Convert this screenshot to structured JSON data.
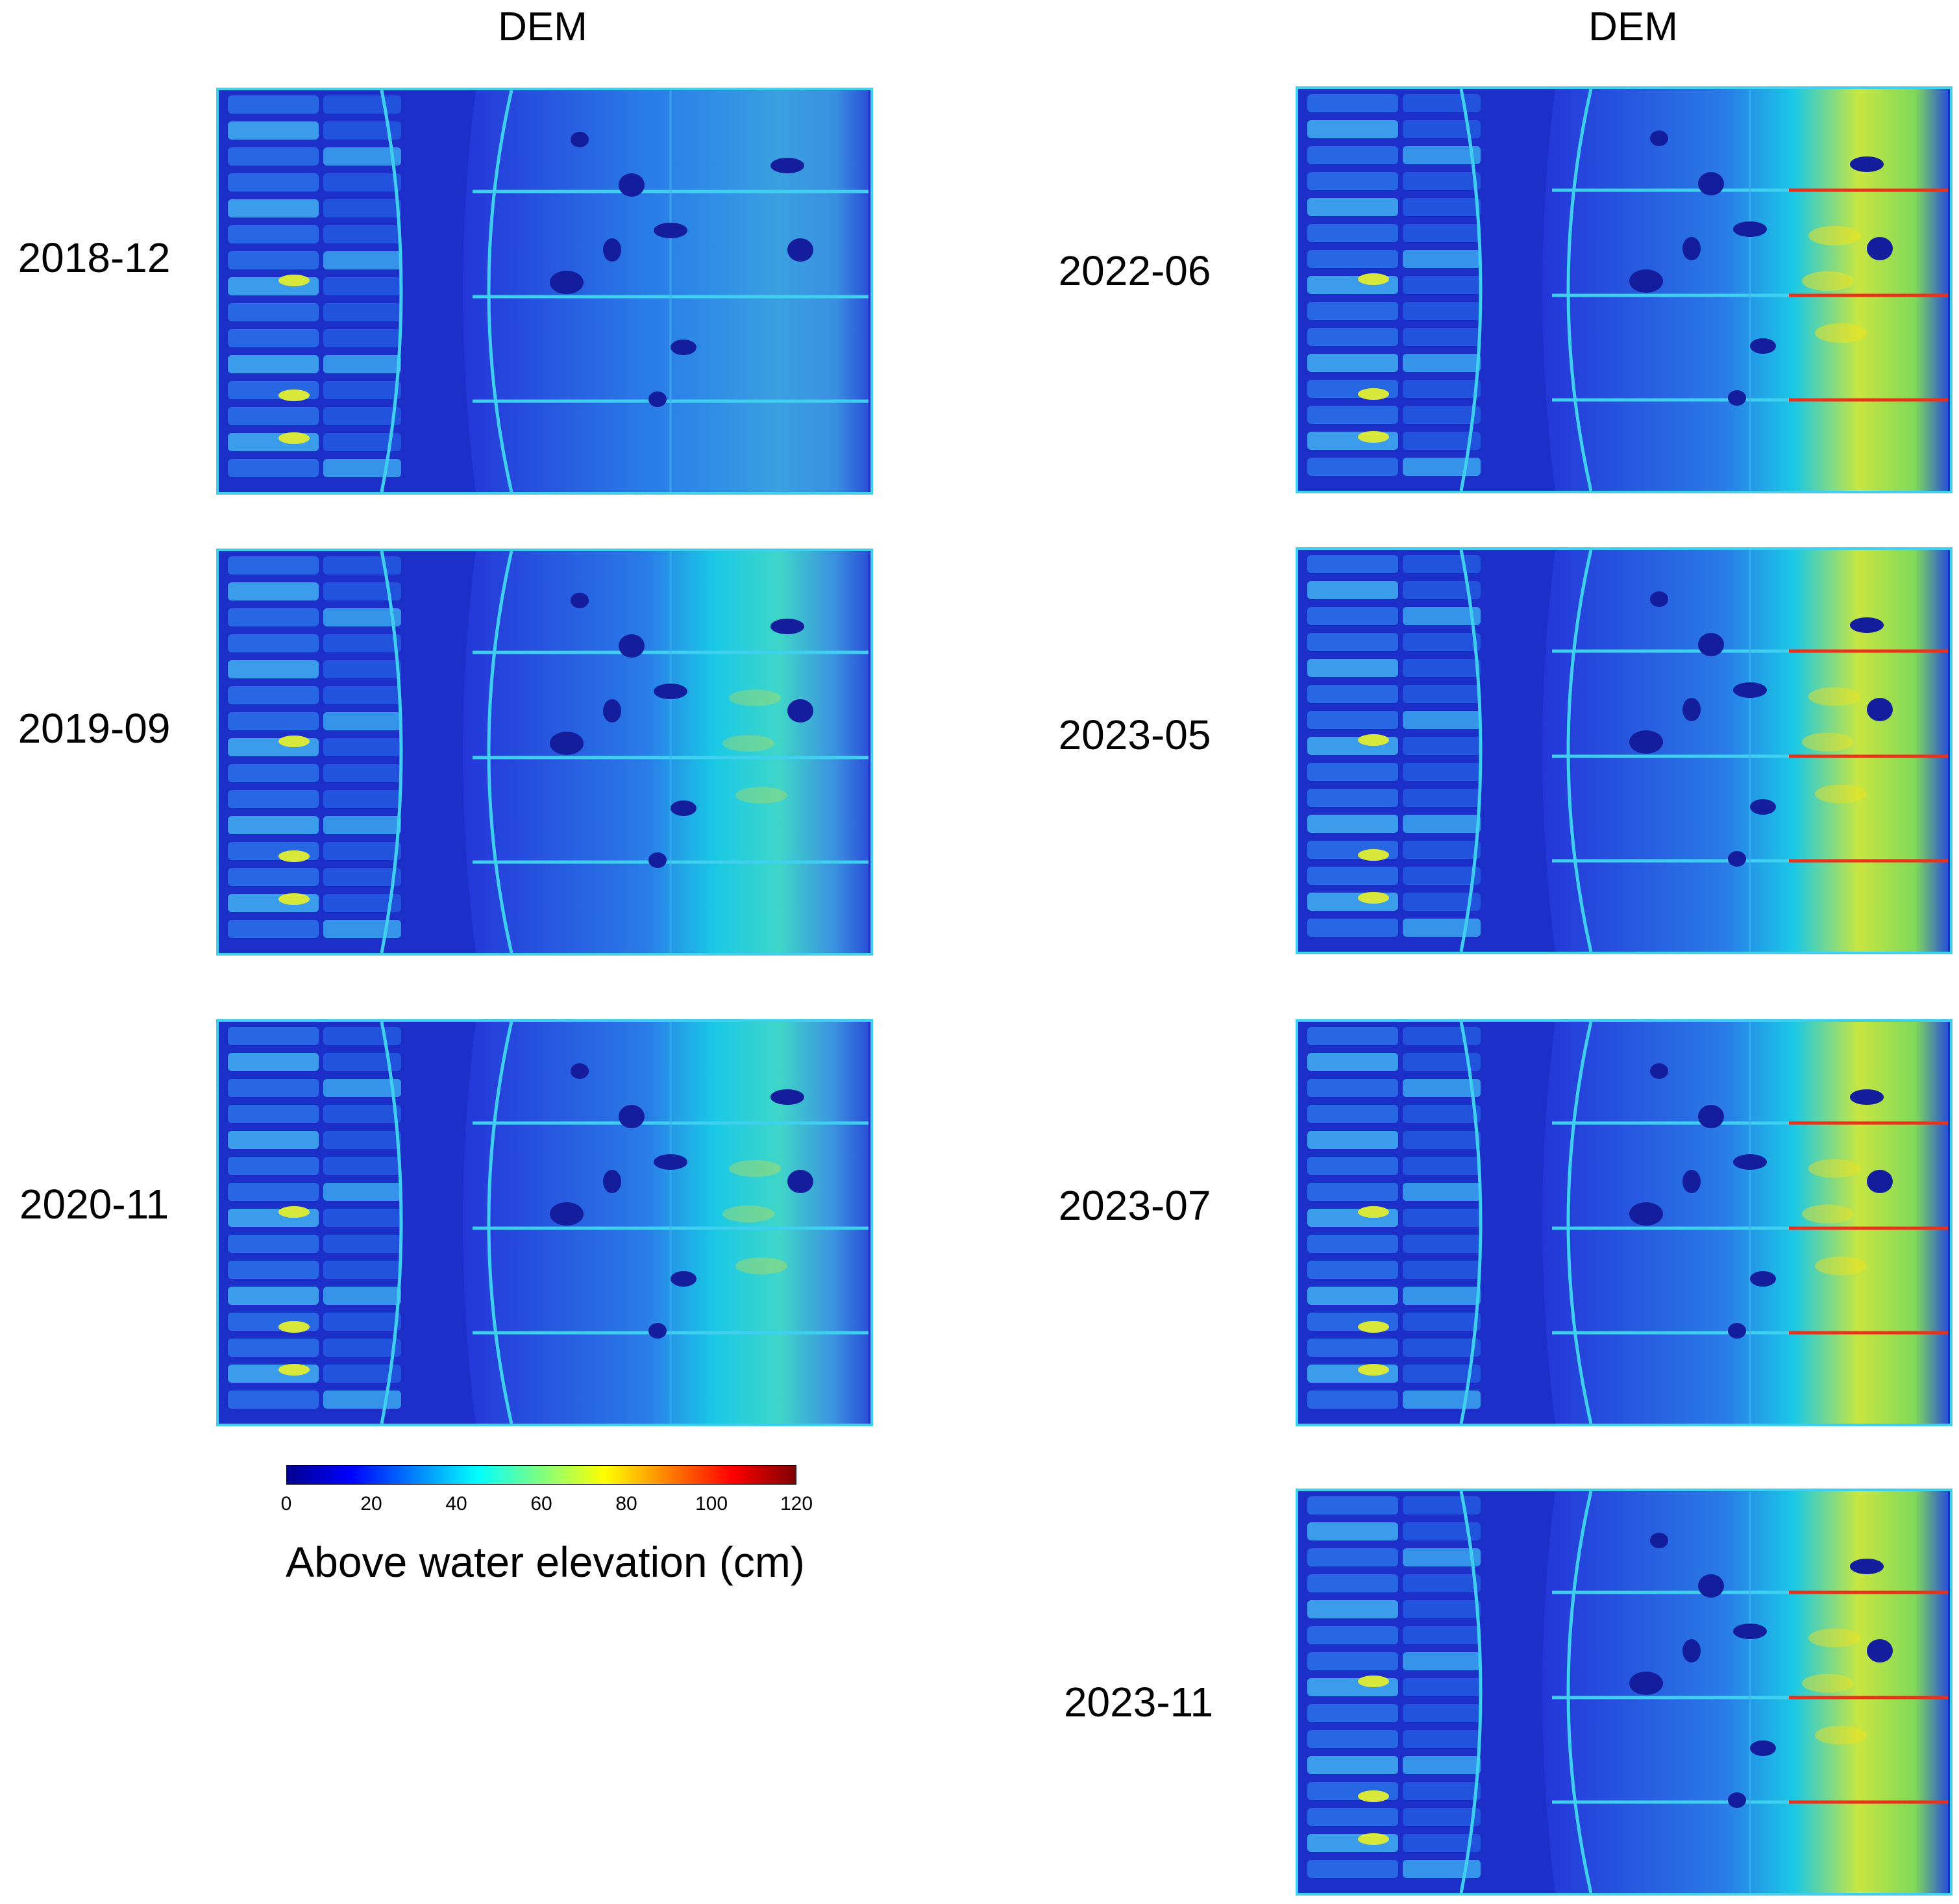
{
  "columns": [
    {
      "title": "DEM"
    },
    {
      "title": "DEM"
    }
  ],
  "panels": [
    {
      "date": "2018-12",
      "intensity": 0.25
    },
    {
      "date": "2019-09",
      "intensity": 0.45
    },
    {
      "date": "2020-11",
      "intensity": 0.5
    },
    {
      "date": "2022-06",
      "intensity": 0.85
    },
    {
      "date": "2023-05",
      "intensity": 0.75
    },
    {
      "date": "2023-07",
      "intensity": 0.75
    },
    {
      "date": "2023-11",
      "intensity": 0.75
    }
  ],
  "colorbar": {
    "label": "Above water elevation (cm)",
    "min": 0,
    "max": 120,
    "ticks": [
      "0",
      "20",
      "40",
      "60",
      "80",
      "100",
      "120"
    ],
    "colormap": "jet"
  },
  "colors": {
    "low": "#1a2ad6",
    "mid": "#19c8e6",
    "high": "#f7e11a",
    "peak": "#e8321a",
    "frame_line": "#3fd0f0"
  }
}
